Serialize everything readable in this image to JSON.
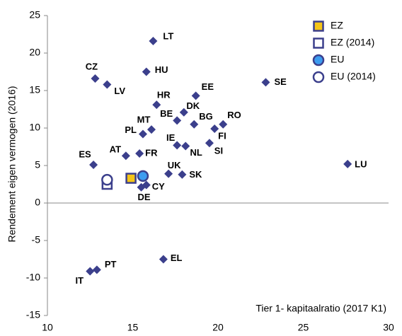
{
  "chart_data": {
    "type": "scatter",
    "y_label": "Rendement eigen vermogen (2016)",
    "x_label": "Tier 1- kapitaalratio (2017 K1)",
    "xlim": [
      10,
      30
    ],
    "xticks": [
      10,
      15,
      20,
      25,
      30
    ],
    "ylim": [
      -15,
      25
    ],
    "yticks": [
      -15,
      -10,
      -5,
      0,
      5,
      10,
      15,
      20,
      25
    ],
    "series": [
      {
        "marker": "diamond",
        "color": "#3b3f8c",
        "labels": [
          "LT",
          "CZ",
          "LV",
          "HU",
          "SE",
          "HR",
          "EE",
          "DK",
          "BE",
          "BG",
          "RO",
          "FI",
          "MT",
          "PL",
          "IE",
          "NL",
          "SI",
          "AT",
          "FR",
          "ES",
          "LU",
          "UK",
          "SK",
          "CY",
          "DE",
          "EL",
          "PT",
          "IT"
        ],
        "x": [
          16.2,
          12.8,
          13.5,
          15.8,
          22.8,
          16.4,
          18.7,
          18.0,
          17.6,
          18.6,
          20.3,
          19.8,
          16.1,
          15.6,
          17.6,
          18.1,
          19.5,
          14.6,
          15.4,
          12.7,
          27.6,
          17.1,
          17.9,
          15.8,
          15.5,
          16.8,
          12.9,
          12.5
        ],
        "y": [
          21.6,
          16.6,
          15.8,
          17.5,
          16.1,
          13.1,
          14.3,
          12.1,
          11.0,
          10.5,
          10.5,
          9.9,
          9.8,
          9.2,
          7.7,
          7.6,
          8.0,
          6.3,
          6.6,
          5.1,
          5.2,
          3.9,
          3.8,
          2.4,
          2.1,
          -7.5,
          -8.9,
          -9.1
        ]
      },
      {
        "name": "EZ",
        "marker": "square",
        "color": "#f5c518",
        "x": [
          14.9
        ],
        "y": [
          3.3
        ]
      },
      {
        "name": "EZ (2014)",
        "marker": "square",
        "color": "#ffffff",
        "x": [
          13.5
        ],
        "y": [
          2.5
        ]
      },
      {
        "name": "EU",
        "marker": "circle",
        "color": "#3c9cf0",
        "x": [
          15.6
        ],
        "y": [
          3.6
        ]
      },
      {
        "name": "EU (2014)",
        "marker": "circle",
        "color": "#ffffff",
        "x": [
          13.5
        ],
        "y": [
          3.1
        ]
      }
    ]
  }
}
